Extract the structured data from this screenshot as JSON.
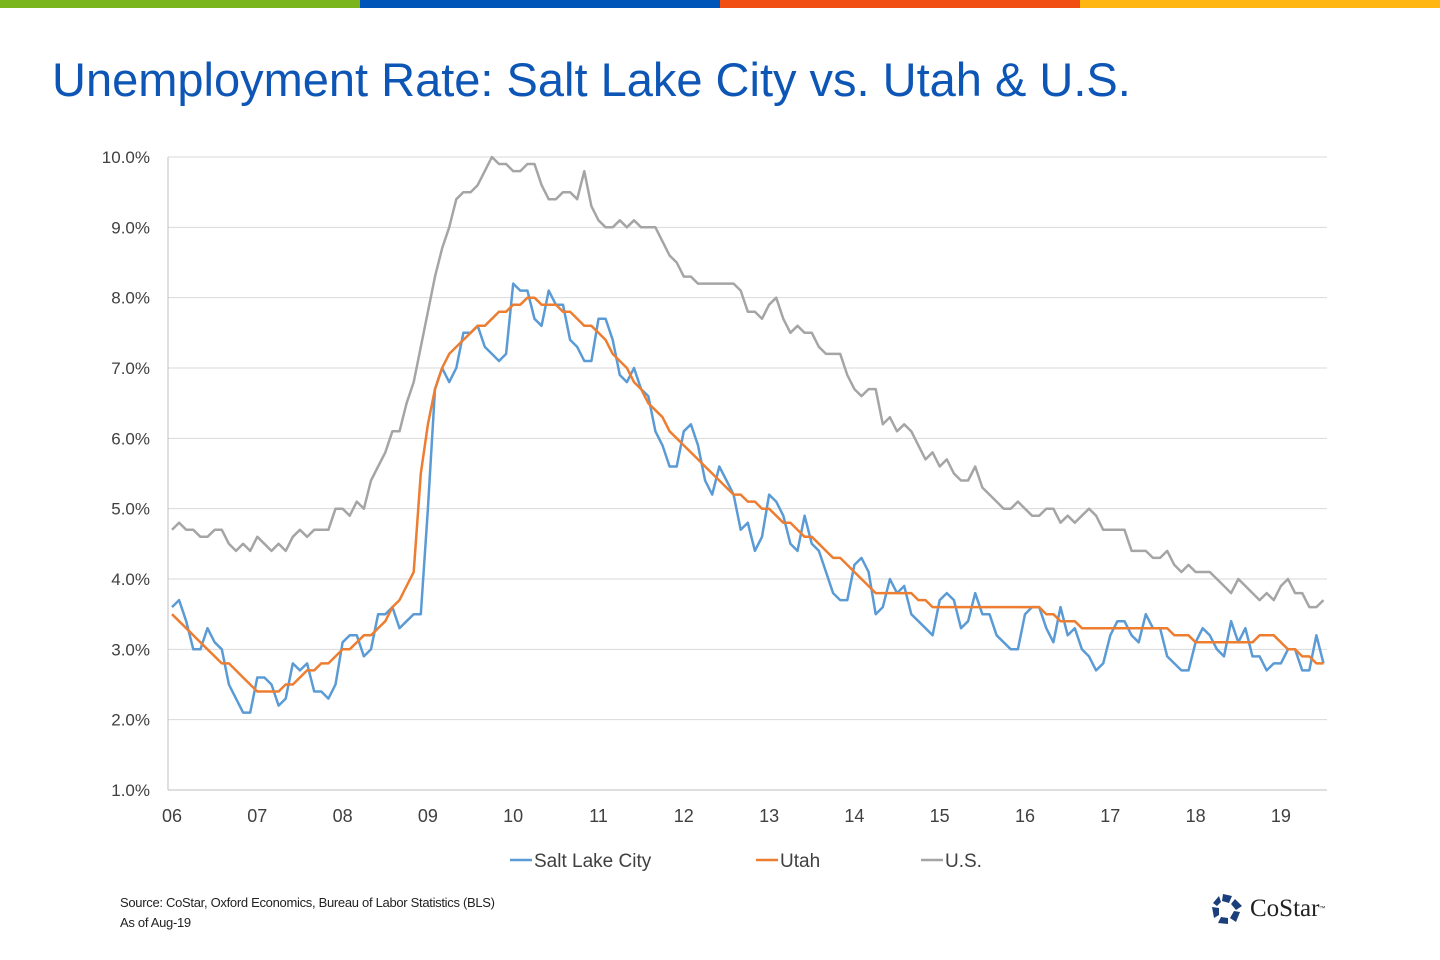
{
  "brand_colors": [
    "#7AB51D",
    "#0055B8",
    "#F04E12",
    "#FFB612"
  ],
  "title": "Unemployment Rate: Salt Lake City vs. Utah & U.S.",
  "footer": {
    "source": "Source: CoStar, Oxford Economics, Bureau of Labor Statistics (BLS)",
    "as_of": "As of Aug-19",
    "logo_text": "CoStar",
    "logo_tm": "™"
  },
  "chart_data": {
    "type": "line",
    "title": "Unemployment Rate: Salt Lake City vs. Utah & U.S.",
    "x_start": "Jan-2006",
    "frequency": "monthly",
    "x_tick_labels": [
      "06",
      "07",
      "08",
      "09",
      "10",
      "11",
      "12",
      "13",
      "14",
      "15",
      "16",
      "17",
      "18",
      "19"
    ],
    "y_tick_labels": [
      "1.0%",
      "2.0%",
      "3.0%",
      "4.0%",
      "5.0%",
      "6.0%",
      "7.0%",
      "8.0%",
      "9.0%",
      "10.0%"
    ],
    "ylim": [
      1,
      10
    ],
    "grid": "horizontal",
    "legend_position": "bottom",
    "series": [
      {
        "name": "Salt Lake City",
        "color": "#5B9BD5",
        "values": [
          3.6,
          3.7,
          3.4,
          3.0,
          3.0,
          3.3,
          3.1,
          3.0,
          2.5,
          2.3,
          2.1,
          2.1,
          2.6,
          2.6,
          2.5,
          2.2,
          2.3,
          2.8,
          2.7,
          2.8,
          2.4,
          2.4,
          2.3,
          2.5,
          3.1,
          3.2,
          3.2,
          2.9,
          3.0,
          3.5,
          3.5,
          3.6,
          3.3,
          3.4,
          3.5,
          3.5,
          5.0,
          6.7,
          7.0,
          6.8,
          7.0,
          7.5,
          7.5,
          7.6,
          7.3,
          7.2,
          7.1,
          7.2,
          8.2,
          8.1,
          8.1,
          7.7,
          7.6,
          8.1,
          7.9,
          7.9,
          7.4,
          7.3,
          7.1,
          7.1,
          7.7,
          7.7,
          7.4,
          6.9,
          6.8,
          7.0,
          6.7,
          6.6,
          6.1,
          5.9,
          5.6,
          5.6,
          6.1,
          6.2,
          5.9,
          5.4,
          5.2,
          5.6,
          5.4,
          5.2,
          4.7,
          4.8,
          4.4,
          4.6,
          5.2,
          5.1,
          4.9,
          4.5,
          4.4,
          4.9,
          4.5,
          4.4,
          4.1,
          3.8,
          3.7,
          3.7,
          4.2,
          4.3,
          4.1,
          3.5,
          3.6,
          4.0,
          3.8,
          3.9,
          3.5,
          3.4,
          3.3,
          3.2,
          3.7,
          3.8,
          3.7,
          3.3,
          3.4,
          3.8,
          3.5,
          3.5,
          3.2,
          3.1,
          3.0,
          3.0,
          3.5,
          3.6,
          3.6,
          3.3,
          3.1,
          3.6,
          3.2,
          3.3,
          3.0,
          2.9,
          2.7,
          2.8,
          3.2,
          3.4,
          3.4,
          3.2,
          3.1,
          3.5,
          3.3,
          3.3,
          2.9,
          2.8,
          2.7,
          2.7,
          3.1,
          3.3,
          3.2,
          3.0,
          2.9,
          3.4,
          3.1,
          3.3,
          2.9,
          2.9,
          2.7,
          2.8,
          2.8,
          3.0,
          3.0,
          2.7,
          2.7,
          3.2,
          2.8
        ]
      },
      {
        "name": "Utah",
        "color": "#ED7D31",
        "values": [
          3.5,
          3.4,
          3.3,
          3.2,
          3.1,
          3.0,
          2.9,
          2.8,
          2.8,
          2.7,
          2.6,
          2.5,
          2.4,
          2.4,
          2.4,
          2.4,
          2.5,
          2.5,
          2.6,
          2.7,
          2.7,
          2.8,
          2.8,
          2.9,
          3.0,
          3.0,
          3.1,
          3.2,
          3.2,
          3.3,
          3.4,
          3.6,
          3.7,
          3.9,
          4.1,
          5.5,
          6.2,
          6.7,
          7.0,
          7.2,
          7.3,
          7.4,
          7.5,
          7.6,
          7.6,
          7.7,
          7.8,
          7.8,
          7.9,
          7.9,
          8.0,
          8.0,
          7.9,
          7.9,
          7.9,
          7.8,
          7.8,
          7.7,
          7.6,
          7.6,
          7.5,
          7.4,
          7.2,
          7.1,
          7.0,
          6.8,
          6.7,
          6.5,
          6.4,
          6.3,
          6.1,
          6.0,
          5.9,
          5.8,
          5.7,
          5.6,
          5.5,
          5.4,
          5.3,
          5.2,
          5.2,
          5.1,
          5.1,
          5.0,
          5.0,
          4.9,
          4.8,
          4.8,
          4.7,
          4.6,
          4.6,
          4.5,
          4.4,
          4.3,
          4.3,
          4.2,
          4.1,
          4.0,
          3.9,
          3.8,
          3.8,
          3.8,
          3.8,
          3.8,
          3.8,
          3.7,
          3.7,
          3.6,
          3.6,
          3.6,
          3.6,
          3.6,
          3.6,
          3.6,
          3.6,
          3.6,
          3.6,
          3.6,
          3.6,
          3.6,
          3.6,
          3.6,
          3.6,
          3.5,
          3.5,
          3.4,
          3.4,
          3.4,
          3.3,
          3.3,
          3.3,
          3.3,
          3.3,
          3.3,
          3.3,
          3.3,
          3.3,
          3.3,
          3.3,
          3.3,
          3.3,
          3.2,
          3.2,
          3.2,
          3.1,
          3.1,
          3.1,
          3.1,
          3.1,
          3.1,
          3.1,
          3.1,
          3.1,
          3.2,
          3.2,
          3.2,
          3.1,
          3.0,
          3.0,
          2.9,
          2.9,
          2.8,
          2.8
        ]
      },
      {
        "name": "U.S.",
        "color": "#A5A5A5",
        "values": [
          4.7,
          4.8,
          4.7,
          4.7,
          4.6,
          4.6,
          4.7,
          4.7,
          4.5,
          4.4,
          4.5,
          4.4,
          4.6,
          4.5,
          4.4,
          4.5,
          4.4,
          4.6,
          4.7,
          4.6,
          4.7,
          4.7,
          4.7,
          5.0,
          5.0,
          4.9,
          5.1,
          5.0,
          5.4,
          5.6,
          5.8,
          6.1,
          6.1,
          6.5,
          6.8,
          7.3,
          7.8,
          8.3,
          8.7,
          9.0,
          9.4,
          9.5,
          9.5,
          9.6,
          9.8,
          10.0,
          9.9,
          9.9,
          9.8,
          9.8,
          9.9,
          9.9,
          9.6,
          9.4,
          9.4,
          9.5,
          9.5,
          9.4,
          9.8,
          9.3,
          9.1,
          9.0,
          9.0,
          9.1,
          9.0,
          9.1,
          9.0,
          9.0,
          9.0,
          8.8,
          8.6,
          8.5,
          8.3,
          8.3,
          8.2,
          8.2,
          8.2,
          8.2,
          8.2,
          8.2,
          8.1,
          7.8,
          7.8,
          7.7,
          7.9,
          8.0,
          7.7,
          7.5,
          7.6,
          7.5,
          7.5,
          7.3,
          7.2,
          7.2,
          7.2,
          6.9,
          6.7,
          6.6,
          6.7,
          6.7,
          6.2,
          6.3,
          6.1,
          6.2,
          6.1,
          5.9,
          5.7,
          5.8,
          5.6,
          5.7,
          5.5,
          5.4,
          5.4,
          5.6,
          5.3,
          5.2,
          5.1,
          5.0,
          5.0,
          5.1,
          5.0,
          4.9,
          4.9,
          5.0,
          5.0,
          4.8,
          4.9,
          4.8,
          4.9,
          5.0,
          4.9,
          4.7,
          4.7,
          4.7,
          4.7,
          4.4,
          4.4,
          4.4,
          4.3,
          4.3,
          4.4,
          4.2,
          4.1,
          4.2,
          4.1,
          4.1,
          4.1,
          4.0,
          3.9,
          3.8,
          4.0,
          3.9,
          3.8,
          3.7,
          3.8,
          3.7,
          3.9,
          4.0,
          3.8,
          3.8,
          3.6,
          3.6,
          3.7
        ]
      }
    ]
  }
}
